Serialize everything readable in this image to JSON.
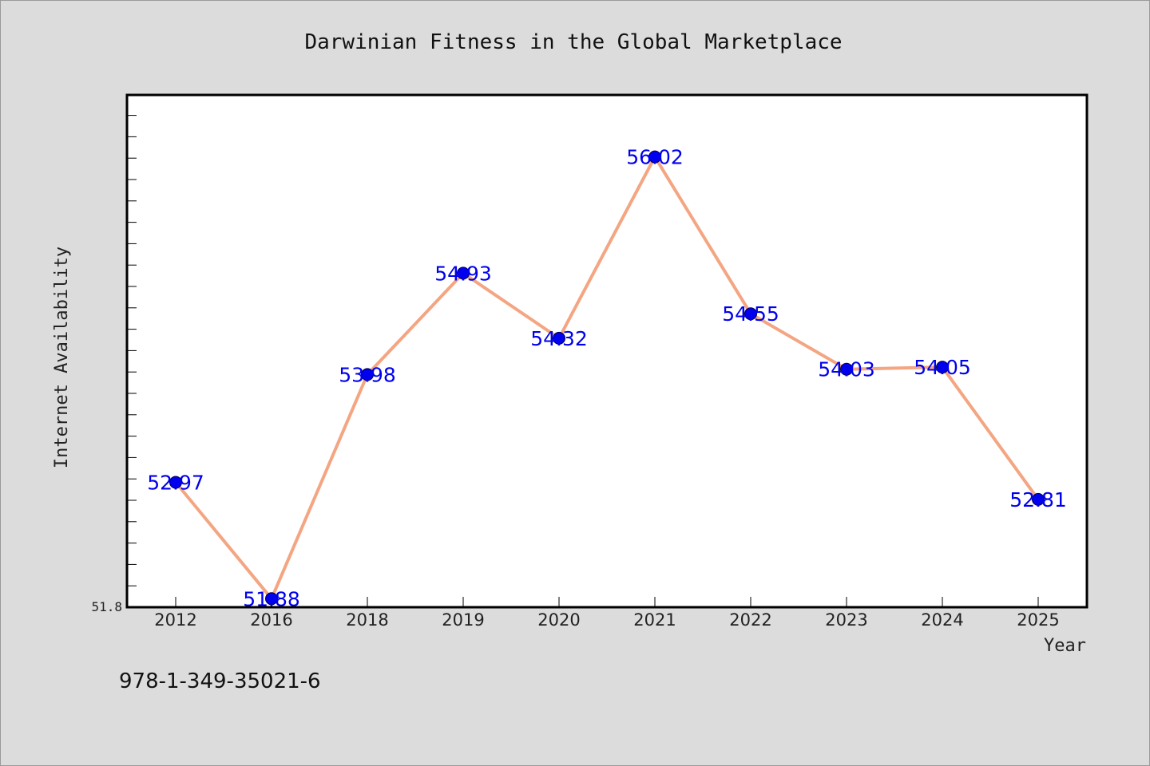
{
  "colors": {
    "background": "#dcdcdc",
    "plot_background": "#ffffff",
    "line": "#f4a582",
    "marker": "#0000ee",
    "data_label": "#0000ee"
  },
  "footer": {
    "isbn": "978-1-349-35021-6"
  },
  "chart_data": {
    "type": "line",
    "title": "Darwinian Fitness in the Global Marketplace",
    "xlabel": "Year",
    "ylabel": "Internet Availability",
    "categories": [
      "2012",
      "2016",
      "2018",
      "2019",
      "2020",
      "2021",
      "2022",
      "2023",
      "2024",
      "2025"
    ],
    "series": [
      {
        "values": [
          52.97,
          51.88,
          53.98,
          54.93,
          54.32,
          56.02,
          54.55,
          54.03,
          54.05,
          52.81
        ],
        "labels": [
          "52.97",
          "51.88",
          "53.98",
          "54.93",
          "54.32",
          "56.02",
          "54.55",
          "54.03",
          "54.05",
          "52.81"
        ]
      }
    ],
    "ylim": [
      51.8,
      56.6
    ],
    "y_tick_labels": [
      "51.8"
    ],
    "grid": false,
    "legend": "none",
    "markers": "filled-circle"
  }
}
